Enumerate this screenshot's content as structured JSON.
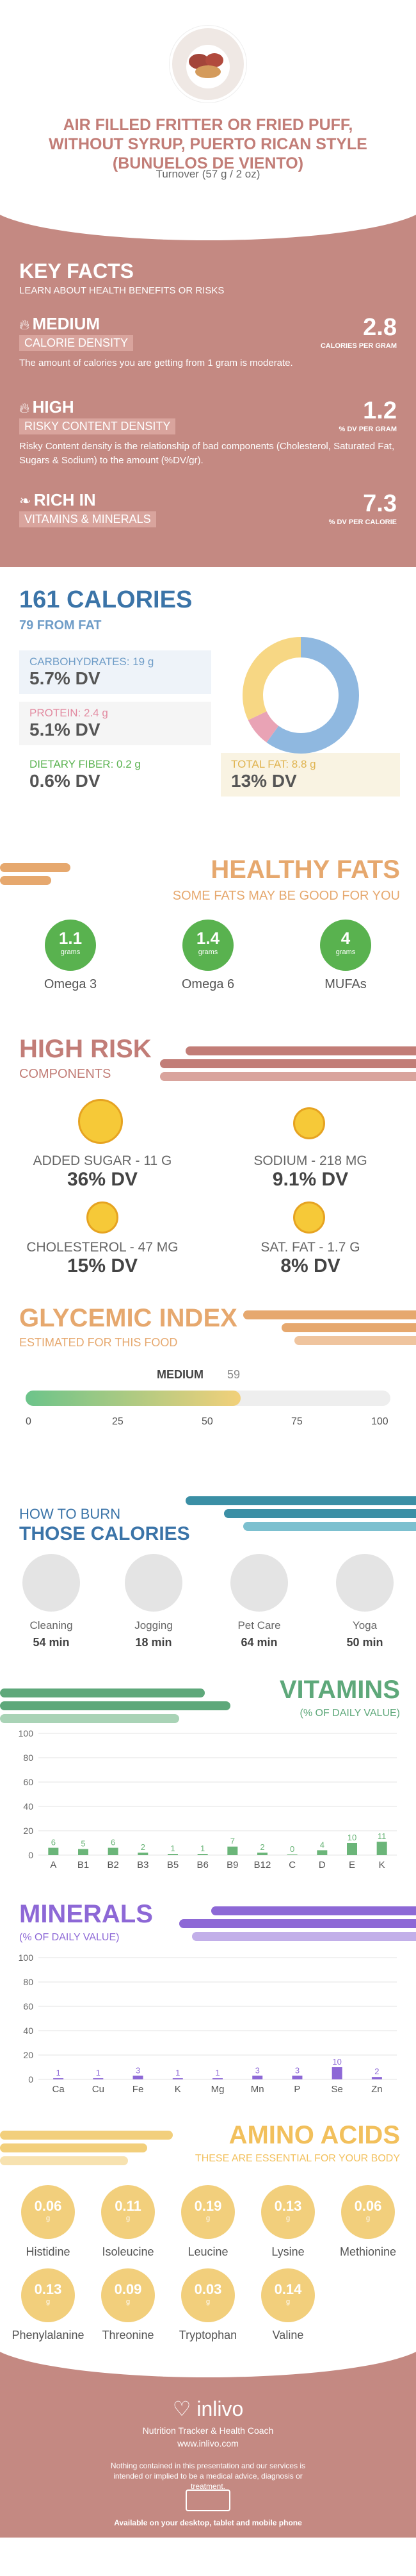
{
  "header": {
    "title": "AIR FILLED FRITTER OR FRIED PUFF, WITHOUT SYRUP, PUERTO RICAN STYLE (BUNUELOS DE VIENTO)",
    "serving": "Turnover (57 g / 2 oz)"
  },
  "key_facts": {
    "title": "KEY FACTS",
    "subtitle": "LEARN ABOUT HEALTH BENEFITS OR RISKS",
    "items": [
      {
        "level": "MEDIUM",
        "label": "CALORIE DENSITY",
        "value": "2.8",
        "unit": "CALORIES PER GRAM",
        "desc": "The amount of calories you are getting from 1 gram is moderate."
      },
      {
        "level": "HIGH",
        "label": "RISKY CONTENT DENSITY",
        "value": "1.2",
        "unit": "% DV PER GRAM",
        "desc": "Risky Content density is the relationship of bad components (Cholesterol, Saturated Fat, Sugars & Sodium) to the amount (%DV/gr)."
      },
      {
        "level": "RICH  IN",
        "label": "VITAMINS & MINERALS",
        "value": "7.3",
        "unit": "% DV PER CALORIE",
        "desc": ""
      }
    ]
  },
  "calories": {
    "title": "161 CALORIES",
    "from_fat": "79 FROM FAT",
    "nutrients": [
      {
        "label": "CARBOHYDRATES: 19 g",
        "dv": "5.7% DV"
      },
      {
        "label": "PROTEIN: 2.4 g",
        "dv": "5.1% DV"
      },
      {
        "label": "DIETARY FIBER: 0.2 g",
        "dv": "0.6% DV"
      },
      {
        "label": "TOTAL FAT: 8.8 g",
        "dv": "13% DV"
      }
    ],
    "donut": [
      {
        "name": "carbs",
        "value": 60,
        "color": "#8fb8e0"
      },
      {
        "name": "protein",
        "value": 8,
        "color": "#e9a3b5"
      },
      {
        "name": "fat",
        "value": 32,
        "color": "#f7d784"
      }
    ]
  },
  "healthy_fats": {
    "title": "HEALTHY FATS",
    "subtitle": "SOME FATS MAY BE GOOD FOR YOU",
    "items": [
      {
        "value": "1.1",
        "unit": "grams",
        "name": "Omega 3"
      },
      {
        "value": "1.4",
        "unit": "grams",
        "name": "Omega 6"
      },
      {
        "value": "4",
        "unit": "grams",
        "name": "MUFAs"
      }
    ]
  },
  "high_risk": {
    "title": "HIGH RISK",
    "subtitle": "COMPONENTS",
    "items": [
      {
        "label": "ADDED SUGAR - 11 g",
        "dv": "36% DV"
      },
      {
        "label": "SODIUM - 218 mg",
        "dv": "9.1% DV"
      },
      {
        "label": "CHOLESTEROL - 47 mg",
        "dv": "15% DV"
      },
      {
        "label": "SAT. FAT - 1.7 g",
        "dv": "8% DV"
      }
    ]
  },
  "glycemic": {
    "title": "GLYCEMIC INDEX",
    "subtitle": "ESTIMATED FOR THIS FOOD",
    "level": "MEDIUM",
    "value": 59,
    "value_label": "59",
    "ticks": [
      "0",
      "25",
      "50",
      "75",
      "100"
    ]
  },
  "burn": {
    "title1": "HOW TO BURN",
    "title2": "THOSE CALORIES",
    "items": [
      {
        "name": "Cleaning",
        "time": "54 min"
      },
      {
        "name": "Jogging",
        "time": "18 min"
      },
      {
        "name": "Pet Care",
        "time": "64 min"
      },
      {
        "name": "Yoga",
        "time": "50 min"
      }
    ]
  },
  "vitamins": {
    "title": "VITAMINS",
    "subtitle": "(% OF DAILY VALUE)",
    "chart_data": {
      "type": "bar",
      "categories": [
        "A",
        "B1",
        "B2",
        "B3",
        "B5",
        "B6",
        "B9",
        "B12",
        "C",
        "D",
        "E",
        "K"
      ],
      "values": [
        6,
        5,
        6,
        2,
        1,
        1,
        7,
        2,
        0,
        4,
        10,
        11
      ],
      "ylim": [
        0,
        100
      ],
      "yticks": [
        "0",
        "20",
        "40",
        "60",
        "80",
        "100"
      ],
      "color": "#6bb579"
    }
  },
  "minerals": {
    "title": "MINERALS",
    "subtitle": "(% OF DAILY VALUE)",
    "chart_data": {
      "type": "bar",
      "categories": [
        "Ca",
        "Cu",
        "Fe",
        "K",
        "Mg",
        "Mn",
        "P",
        "Se",
        "Zn"
      ],
      "values": [
        1,
        1,
        3,
        1,
        1,
        3,
        3,
        10,
        2
      ],
      "ylim": [
        0,
        100
      ],
      "yticks": [
        "0",
        "20",
        "40",
        "60",
        "80",
        "100"
      ],
      "color": "#8d68d6"
    }
  },
  "amino": {
    "title": "AMINO ACIDS",
    "subtitle": "THESE ARE ESSENTIAL FOR YOUR BODY",
    "items": [
      {
        "value": "0.06",
        "unit": "g",
        "name": "Histidine"
      },
      {
        "value": "0.11",
        "unit": "g",
        "name": "Isoleucine"
      },
      {
        "value": "0.19",
        "unit": "g",
        "name": "Leucine"
      },
      {
        "value": "0.13",
        "unit": "g",
        "name": "Lysine"
      },
      {
        "value": "0.06",
        "unit": "g",
        "name": "Methionine"
      },
      {
        "value": "0.13",
        "unit": "g",
        "name": "Phenylalanine"
      },
      {
        "value": "0.09",
        "unit": "g",
        "name": "Threonine"
      },
      {
        "value": "0.03",
        "unit": "g",
        "name": "Tryptophan"
      },
      {
        "value": "0.14",
        "unit": "g",
        "name": "Valine"
      }
    ]
  },
  "footer": {
    "brand": "inlivo",
    "tagline": "Nutrition Tracker & Health Coach",
    "url": "www.inlivo.com",
    "disclaimer": "Nothing contained in this presentation and our services is intended or implied to be a medical advice, diagnosis or treatment.",
    "available": "Available on your desktop, tablet and mobile phone"
  }
}
